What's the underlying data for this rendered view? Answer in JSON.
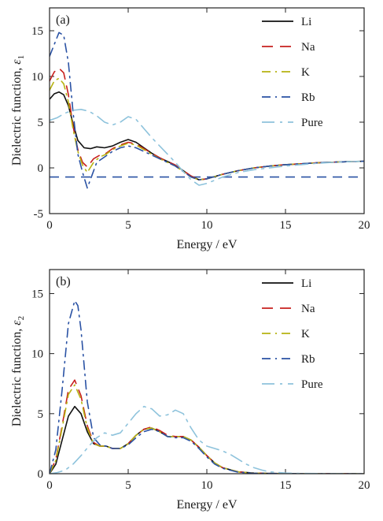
{
  "chart_data": [
    {
      "type": "line",
      "panel_label": "(a)",
      "xlabel": "Energy / eV",
      "ylabel_text": "Dielectric function, ",
      "ylabel_symbol": "ε",
      "ylabel_sub": "1",
      "xlim": [
        0,
        20
      ],
      "ylim": [
        -5,
        17.5
      ],
      "xticks": [
        0,
        5,
        10,
        15,
        20
      ],
      "yticks": [
        -5,
        0,
        5,
        10,
        15
      ],
      "grid": false,
      "legend_position": "top-right",
      "reference_line": {
        "y": -1,
        "style": "dashed",
        "color": "#2a52a4"
      },
      "series": [
        {
          "name": "Li",
          "color": "#111111",
          "dash": "solid",
          "x": [
            0,
            0.3,
            0.6,
            0.9,
            1.2,
            1.5,
            1.8,
            2.2,
            2.6,
            3.0,
            3.5,
            4.0,
            4.5,
            5.0,
            5.5,
            6.0,
            6.5,
            7.0,
            7.5,
            8.0,
            8.5,
            9.0,
            9.5,
            10.0,
            11.0,
            12.0,
            13.0,
            14.0,
            15.0,
            16.0,
            17.0,
            18.0,
            19.0,
            20.0
          ],
          "y": [
            7.5,
            8.1,
            8.3,
            8.0,
            6.8,
            4.8,
            3.0,
            2.2,
            2.1,
            2.3,
            2.2,
            2.4,
            2.8,
            3.1,
            2.8,
            2.2,
            1.6,
            1.1,
            0.7,
            0.3,
            -0.3,
            -0.9,
            -1.3,
            -1.2,
            -0.7,
            -0.3,
            0.0,
            0.2,
            0.35,
            0.45,
            0.55,
            0.62,
            0.68,
            0.72
          ]
        },
        {
          "name": "Na",
          "color": "#c8201e",
          "dash": "long-dash",
          "x": [
            0,
            0.3,
            0.6,
            0.9,
            1.2,
            1.5,
            1.8,
            2.1,
            2.4,
            2.8,
            3.2,
            3.6,
            4.0,
            4.5,
            5.0,
            5.5,
            6.0,
            6.5,
            7.0,
            7.5,
            8.0,
            8.5,
            9.0,
            9.5,
            10.0,
            11.0,
            12.0,
            13.0,
            14.0,
            15.0,
            16.0,
            17.0,
            18.0,
            19.0,
            20.0
          ],
          "y": [
            9.5,
            10.5,
            10.9,
            10.4,
            8.0,
            4.5,
            2.0,
            0.6,
            0.1,
            1.0,
            1.4,
            1.6,
            2.1,
            2.5,
            2.8,
            2.6,
            2.1,
            1.6,
            1.1,
            0.7,
            0.3,
            -0.3,
            -0.9,
            -1.3,
            -1.2,
            -0.7,
            -0.3,
            0.0,
            0.2,
            0.35,
            0.45,
            0.55,
            0.62,
            0.68,
            0.72
          ]
        },
        {
          "name": "K",
          "color": "#b6b212",
          "dash": "dash-dot",
          "x": [
            0,
            0.3,
            0.6,
            0.9,
            1.2,
            1.5,
            1.8,
            2.1,
            2.4,
            2.8,
            3.2,
            3.6,
            4.0,
            4.5,
            5.0,
            5.5,
            6.0,
            6.5,
            7.0,
            7.5,
            8.0,
            8.5,
            9.0,
            9.5,
            10.0,
            11.0,
            12.0,
            13.0,
            14.0,
            15.0,
            16.0,
            17.0,
            18.0,
            19.0,
            20.0
          ],
          "y": [
            8.5,
            9.5,
            9.8,
            9.2,
            7.2,
            4.2,
            1.8,
            0.3,
            -0.5,
            0.6,
            1.2,
            1.5,
            2.0,
            2.4,
            2.7,
            2.5,
            2.0,
            1.5,
            1.0,
            0.6,
            0.2,
            -0.4,
            -1.0,
            -1.3,
            -1.2,
            -0.7,
            -0.3,
            0.0,
            0.2,
            0.35,
            0.45,
            0.55,
            0.62,
            0.68,
            0.72
          ]
        },
        {
          "name": "Rb",
          "color": "#2a52a4",
          "dash": "dash-dot",
          "x": [
            0,
            0.3,
            0.6,
            0.9,
            1.2,
            1.5,
            1.8,
            2.1,
            2.4,
            2.7,
            3.0,
            3.5,
            4.0,
            4.5,
            5.0,
            5.5,
            6.0,
            6.5,
            7.0,
            7.5,
            8.0,
            8.5,
            9.0,
            9.5,
            10.0,
            11.0,
            12.0,
            13.0,
            14.0,
            15.0,
            16.0,
            17.0,
            18.0,
            19.0,
            20.0
          ],
          "y": [
            12.2,
            13.5,
            14.8,
            14.5,
            11.5,
            6.0,
            1.5,
            -0.5,
            -2.2,
            -0.8,
            0.6,
            1.2,
            1.8,
            2.2,
            2.4,
            2.2,
            1.8,
            1.4,
            1.0,
            0.6,
            0.2,
            -0.4,
            -1.0,
            -1.3,
            -1.2,
            -0.7,
            -0.3,
            0.0,
            0.2,
            0.35,
            0.45,
            0.55,
            0.62,
            0.68,
            0.72
          ]
        },
        {
          "name": "Pure",
          "color": "#8ec3dc",
          "dash": "long-dash-dot",
          "x": [
            0,
            0.5,
            1.0,
            1.5,
            2.0,
            2.5,
            3.0,
            3.5,
            4.0,
            4.5,
            5.0,
            5.5,
            6.0,
            6.5,
            7.0,
            7.5,
            8.0,
            8.5,
            9.0,
            9.5,
            10.0,
            11.0,
            12.0,
            13.0,
            14.0,
            15.0,
            16.0,
            17.0,
            18.0,
            19.0,
            20.0
          ],
          "y": [
            5.2,
            5.5,
            6.0,
            6.3,
            6.4,
            6.2,
            5.7,
            5.0,
            4.7,
            5.0,
            5.6,
            5.3,
            4.3,
            3.3,
            2.4,
            1.5,
            0.6,
            -0.4,
            -1.3,
            -1.9,
            -1.7,
            -1.0,
            -0.5,
            -0.2,
            0.0,
            0.2,
            0.35,
            0.5,
            0.6,
            0.68,
            0.72
          ]
        }
      ]
    },
    {
      "type": "line",
      "panel_label": "(b)",
      "xlabel": "Energy / eV",
      "ylabel_text": "Dielectric function, ",
      "ylabel_symbol": "ε",
      "ylabel_sub": "2",
      "xlim": [
        0,
        20
      ],
      "ylim": [
        0,
        17
      ],
      "xticks": [
        0,
        5,
        10,
        15,
        20
      ],
      "yticks": [
        0,
        5,
        10,
        15
      ],
      "grid": false,
      "legend_position": "top-right",
      "series": [
        {
          "name": "Li",
          "color": "#111111",
          "dash": "solid",
          "x": [
            0,
            0.4,
            0.8,
            1.2,
            1.6,
            2.0,
            2.4,
            2.8,
            3.2,
            3.6,
            4.0,
            4.5,
            5.0,
            5.5,
            6.0,
            6.5,
            7.0,
            7.5,
            8.0,
            8.5,
            9.0,
            9.5,
            10.0,
            10.5,
            11.0,
            12.0,
            13.0,
            14.0,
            15.0,
            16.0,
            18.0,
            20.0
          ],
          "y": [
            0,
            0.8,
            2.8,
            4.8,
            5.6,
            5.0,
            3.5,
            2.5,
            2.3,
            2.3,
            2.1,
            2.1,
            2.5,
            3.2,
            3.7,
            3.8,
            3.5,
            3.1,
            3.1,
            3.1,
            2.8,
            2.2,
            1.5,
            0.9,
            0.5,
            0.15,
            0.05,
            0.02,
            0.01,
            0,
            0,
            0
          ]
        },
        {
          "name": "Na",
          "color": "#c8201e",
          "dash": "long-dash",
          "x": [
            0,
            0.4,
            0.8,
            1.2,
            1.6,
            2.0,
            2.4,
            2.8,
            3.2,
            3.6,
            4.0,
            4.5,
            5.0,
            5.5,
            6.0,
            6.5,
            7.0,
            7.5,
            8.0,
            8.5,
            9.0,
            9.5,
            10.0,
            10.5,
            11.0,
            12.0,
            13.0,
            14.0,
            15.0,
            16.0,
            18.0,
            20.0
          ],
          "y": [
            0,
            1.2,
            4.0,
            7.0,
            7.8,
            6.5,
            4.0,
            2.6,
            2.3,
            2.3,
            2.1,
            2.1,
            2.5,
            3.2,
            3.7,
            3.9,
            3.6,
            3.2,
            3.1,
            3.1,
            2.8,
            2.2,
            1.5,
            0.9,
            0.5,
            0.15,
            0.05,
            0.02,
            0.01,
            0,
            0,
            0
          ]
        },
        {
          "name": "K",
          "color": "#b6b212",
          "dash": "dash-dot",
          "x": [
            0,
            0.4,
            0.8,
            1.2,
            1.6,
            2.0,
            2.4,
            2.8,
            3.2,
            3.6,
            4.0,
            4.5,
            5.0,
            5.5,
            6.0,
            6.5,
            7.0,
            7.5,
            8.0,
            8.5,
            9.0,
            9.5,
            10.0,
            10.5,
            11.0,
            12.0,
            13.0,
            14.0,
            15.0,
            16.0,
            18.0,
            20.0
          ],
          "y": [
            0,
            1.1,
            3.8,
            6.6,
            7.4,
            6.2,
            3.8,
            2.5,
            2.3,
            2.3,
            2.1,
            2.1,
            2.5,
            3.2,
            3.7,
            3.8,
            3.5,
            3.1,
            3.1,
            3.1,
            2.8,
            2.2,
            1.5,
            0.9,
            0.5,
            0.15,
            0.05,
            0.02,
            0.01,
            0,
            0,
            0
          ]
        },
        {
          "name": "Rb",
          "color": "#2a52a4",
          "dash": "dash-dot",
          "x": [
            0,
            0.4,
            0.8,
            1.2,
            1.6,
            1.8,
            2.0,
            2.4,
            2.8,
            3.2,
            3.6,
            4.0,
            4.5,
            5.0,
            5.5,
            6.0,
            6.5,
            7.0,
            7.5,
            8.0,
            8.5,
            9.0,
            9.5,
            10.0,
            10.5,
            11.0,
            12.0,
            13.0,
            14.0,
            15.0,
            16.0,
            18.0,
            20.0
          ],
          "y": [
            0,
            2.0,
            7.0,
            12.5,
            14.4,
            14.0,
            12.0,
            6.0,
            3.0,
            2.4,
            2.3,
            2.1,
            2.1,
            2.4,
            3.0,
            3.5,
            3.7,
            3.5,
            3.1,
            3.0,
            3.0,
            2.7,
            2.1,
            1.4,
            0.8,
            0.45,
            0.12,
            0.04,
            0.02,
            0.01,
            0,
            0,
            0
          ]
        },
        {
          "name": "Pure",
          "color": "#8ec3dc",
          "dash": "long-dash-dot",
          "x": [
            0,
            0.5,
            1.0,
            1.5,
            2.0,
            2.5,
            3.0,
            3.5,
            4.0,
            4.5,
            5.0,
            5.5,
            6.0,
            6.5,
            7.0,
            7.5,
            8.0,
            8.5,
            9.0,
            9.5,
            10.0,
            10.5,
            11.0,
            11.5,
            12.0,
            12.5,
            13.0,
            13.5,
            14.0,
            15.0,
            16.0,
            18.0,
            20.0
          ],
          "y": [
            0,
            0.1,
            0.3,
            0.8,
            1.5,
            2.3,
            3.0,
            3.4,
            3.2,
            3.4,
            4.2,
            5.0,
            5.6,
            5.4,
            4.8,
            4.9,
            5.3,
            5.0,
            3.8,
            2.8,
            2.3,
            2.1,
            1.9,
            1.6,
            1.2,
            0.8,
            0.5,
            0.3,
            0.15,
            0.05,
            0.02,
            0,
            0
          ]
        }
      ]
    }
  ]
}
